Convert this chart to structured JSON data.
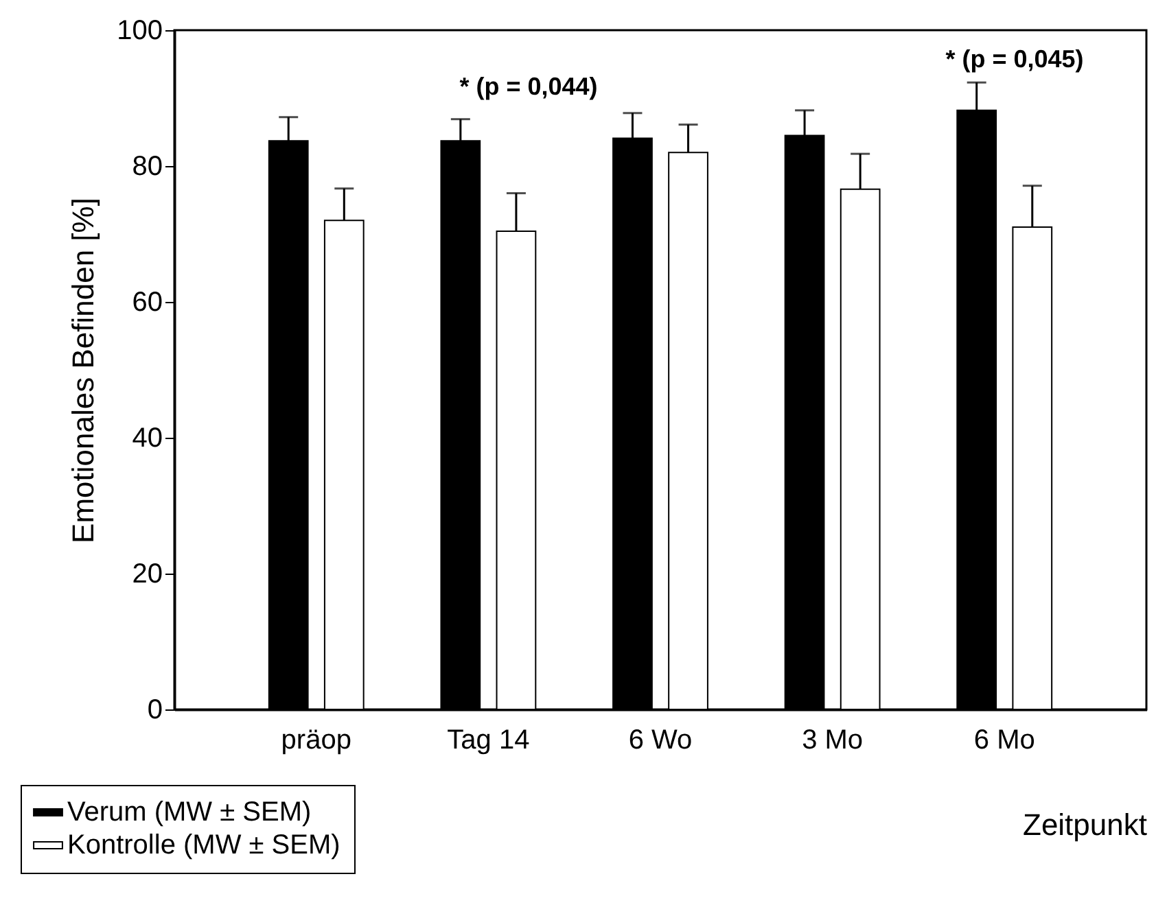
{
  "chart_data": {
    "type": "bar",
    "xlabel": "Zeitpunkt",
    "ylabel": "Emotionales Befinden [%]",
    "categories": [
      "präop",
      "Tag 14",
      "6 Wo",
      "3 Mo",
      "6 Mo"
    ],
    "series": [
      {
        "name": "Verum (MW ± SEM)",
        "color": "#000000",
        "values": [
          83.7,
          83.7,
          84.1,
          84.5,
          88.2
        ],
        "errors": [
          3.5,
          3.2,
          3.7,
          3.7,
          4.1
        ]
      },
      {
        "name": "Kontrolle (MW ± SEM)",
        "color": "#ffffff",
        "values": [
          72.0,
          70.4,
          82.0,
          76.6,
          71.0
        ],
        "errors": [
          4.7,
          5.6,
          4.1,
          5.2,
          6.1
        ]
      }
    ],
    "ylim": [
      0,
      100
    ],
    "yticks": [
      0,
      20,
      40,
      60,
      80,
      100
    ],
    "grid": false,
    "legend": "bottom left",
    "annotations": [
      "* (p = 0,044)",
      "* (p = 0,045)"
    ]
  }
}
